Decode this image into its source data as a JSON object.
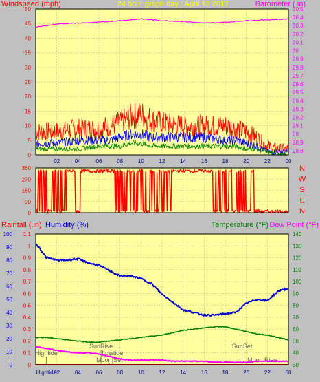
{
  "colors": {
    "background": "#c0c0c0",
    "plot_bg": "#ffffa0",
    "wind": "#ff0000",
    "gust": "#0000ff",
    "avg": "#008000",
    "baro": "#ff00ff",
    "dir": "#ff0000",
    "humidity": "#0000d0",
    "temp": "#008000",
    "dew": "#ff00ff",
    "rain": "#ff0000",
    "title": "#ffff00",
    "events": "#606060"
  },
  "chart_data": [
    {
      "type": "line",
      "title": "24 hour graph day : April 13 2017",
      "ylabel_left": "Windspeed (mph)",
      "ylabel_right": "Barometer (.in)",
      "x_ticks": [
        "02",
        "04",
        "06",
        "08",
        "10",
        "12",
        "14",
        "16",
        "18",
        "20",
        "22",
        "00"
      ],
      "y_left": {
        "min": 0,
        "max": 50,
        "ticks": [
          "0",
          "5",
          "10",
          "15",
          "20",
          "25",
          "30",
          "35",
          "40",
          "45",
          "50"
        ]
      },
      "y_right": {
        "min": 28.75,
        "max": 30.5,
        "ticks": [
          "28.8",
          "28.9",
          "29",
          "29.1",
          "29.2",
          "29.3",
          "29.4",
          "29.5",
          "29.6",
          "29.7",
          "29.8",
          "29.9",
          "30",
          "30.1",
          "30.2",
          "30.3",
          "30.4",
          "30.5"
        ]
      },
      "series": [
        {
          "name": "Barometer",
          "axis": "right",
          "x": [
            0,
            2,
            4,
            6,
            8,
            10,
            12,
            14,
            16,
            18,
            20,
            22,
            24
          ],
          "y": [
            30.28,
            30.32,
            30.33,
            30.34,
            30.36,
            30.38,
            30.36,
            30.35,
            30.33,
            30.34,
            30.36,
            30.37,
            30.38
          ]
        },
        {
          "name": "Wind gust",
          "axis": "left",
          "x": [
            0,
            2,
            4,
            6,
            7,
            8,
            9,
            10,
            11,
            12,
            14,
            16,
            18,
            19,
            20,
            21,
            22,
            23,
            24
          ],
          "y": [
            8,
            8,
            9,
            9,
            10,
            11,
            13,
            14,
            12,
            11,
            10,
            10,
            10,
            9,
            8,
            6,
            3,
            2,
            2
          ]
        },
        {
          "name": "Wind speed",
          "axis": "left",
          "x": [
            0,
            2,
            4,
            6,
            7,
            8,
            9,
            10,
            11,
            12,
            14,
            16,
            18,
            19,
            20,
            21,
            22,
            23,
            24
          ],
          "y": [
            4,
            4,
            5,
            5,
            5,
            6,
            7,
            7,
            6,
            6,
            6,
            6,
            5,
            5,
            4,
            3,
            1,
            1,
            1
          ]
        },
        {
          "name": "Average wind",
          "axis": "left",
          "x": [
            0,
            2,
            4,
            6,
            7,
            8,
            9,
            10,
            11,
            12,
            14,
            16,
            18,
            19,
            20,
            21,
            22,
            23,
            24
          ],
          "y": [
            2,
            2,
            2,
            3,
            3,
            3,
            4,
            4,
            3,
            3,
            3,
            3,
            3,
            3,
            2,
            2,
            1,
            0,
            0
          ]
        }
      ]
    },
    {
      "type": "line",
      "ylabel_left_ticks": [
        "0",
        "90",
        "180",
        "270",
        "360"
      ],
      "y_left": {
        "min": 0,
        "max": 360
      },
      "compass_labels": [
        "N",
        "W",
        "S",
        "E",
        "N"
      ],
      "series": [
        {
          "name": "Wind direction",
          "x": [
            0,
            0.4,
            0.5,
            1,
            1.5,
            2,
            2.5,
            3,
            3.5,
            4,
            4.5,
            5,
            6,
            7,
            7.5,
            8,
            8.5,
            9,
            9.5,
            10,
            10.5,
            11,
            11.5,
            12,
            12.5,
            13,
            14,
            15,
            16,
            16.5,
            17,
            17.5,
            18,
            18.5,
            19,
            19.5,
            20,
            20.5,
            21,
            21.5,
            22,
            23,
            24
          ],
          "y": [
            5,
            340,
            20,
            345,
            15,
            350,
            10,
            340,
            345,
            10,
            340,
            345,
            330,
            320,
            340,
            340,
            15,
            340,
            20,
            350,
            15,
            340,
            30,
            340,
            350,
            340,
            345,
            340,
            325,
            330,
            20,
            15,
            10,
            345,
            20,
            350,
            15,
            340,
            20,
            10,
            10,
            10,
            10
          ]
        }
      ]
    },
    {
      "type": "line",
      "ylabel_left_outer": "Rainfall (.in)",
      "ylabel_left_inner": "Humidity (%)",
      "ylabel_right_outer": "Dew Point (°F)",
      "ylabel_right_inner": "Temperature (°F)",
      "x_ticks": [
        "Hightide",
        "02",
        "04",
        "06",
        "08",
        "10",
        "12",
        "14",
        "16",
        "18",
        "20",
        "22",
        "00"
      ],
      "y_humidity": {
        "min": 0,
        "max": 100,
        "ticks": [
          "0",
          "10",
          "20",
          "30",
          "40",
          "50",
          "60",
          "70",
          "80",
          "90",
          "100"
        ]
      },
      "y_rain": {
        "min": 0,
        "max": 1.1,
        "ticks": [
          "0",
          "0.1",
          "0.2",
          "0.3",
          "0.4",
          "0.5",
          "0.6",
          "0.7",
          "0.8",
          "0.9",
          "1",
          "1.1"
        ]
      },
      "y_temp": {
        "min": 30,
        "max": 140,
        "ticks": [
          "30",
          "40",
          "50",
          "60",
          "70",
          "80",
          "90",
          "100",
          "110",
          "120",
          "130",
          "140"
        ]
      },
      "events": [
        {
          "label": "Hightide",
          "x": 1.0,
          "row": 1
        },
        {
          "label": "SunRise",
          "x": 6.2,
          "row": 0
        },
        {
          "label": "Lowtide",
          "x": 7.3,
          "row": 1
        },
        {
          "label": "Moon Set",
          "x": 7.0,
          "row": 2
        },
        {
          "label": "SunSet",
          "x": 19.6,
          "row": 0
        },
        {
          "label": "Moon Rise",
          "x": 21.5,
          "row": 2
        }
      ],
      "series": [
        {
          "name": "Humidity",
          "axis": "humidity",
          "x": [
            0,
            0.3,
            1,
            2,
            3,
            4,
            5,
            6,
            7,
            8,
            9,
            10,
            11,
            12,
            13,
            14,
            15,
            16,
            17,
            18,
            19,
            20,
            21,
            22,
            23,
            23.5,
            24
          ],
          "y": [
            92,
            90,
            82,
            80,
            80,
            81,
            78,
            76,
            72,
            68,
            68,
            66,
            62,
            54,
            48,
            42,
            40,
            38,
            38,
            39,
            40,
            47,
            50,
            49,
            56,
            58,
            57
          ]
        },
        {
          "name": "Temperature",
          "axis": "temp",
          "x": [
            0,
            1,
            2,
            3,
            4,
            5,
            6,
            7,
            8,
            9,
            10,
            11,
            12,
            13,
            14,
            15,
            16,
            17,
            18,
            19,
            20,
            21,
            22,
            23,
            24
          ],
          "y": [
            53,
            53,
            52,
            51,
            50,
            49,
            49,
            50,
            51,
            52,
            53,
            54,
            55,
            57,
            59,
            60,
            61,
            62,
            62,
            60,
            58,
            56,
            55,
            53,
            51
          ]
        },
        {
          "name": "Dew Point",
          "axis": "temp",
          "x": [
            0,
            1,
            2,
            3,
            4,
            5,
            6,
            7,
            8,
            9,
            10,
            11,
            12,
            13,
            14,
            15,
            16,
            17,
            18,
            19,
            20,
            21,
            22,
            23,
            24
          ],
          "y": [
            45,
            44,
            42,
            41,
            40,
            40,
            39,
            37,
            35,
            34,
            34,
            34,
            34,
            33,
            33,
            33,
            33,
            32,
            32,
            32,
            32,
            33,
            33,
            33,
            33
          ]
        },
        {
          "name": "Rainfall",
          "axis": "rain",
          "x": [
            0,
            24
          ],
          "y": [
            0,
            0
          ]
        }
      ]
    }
  ]
}
